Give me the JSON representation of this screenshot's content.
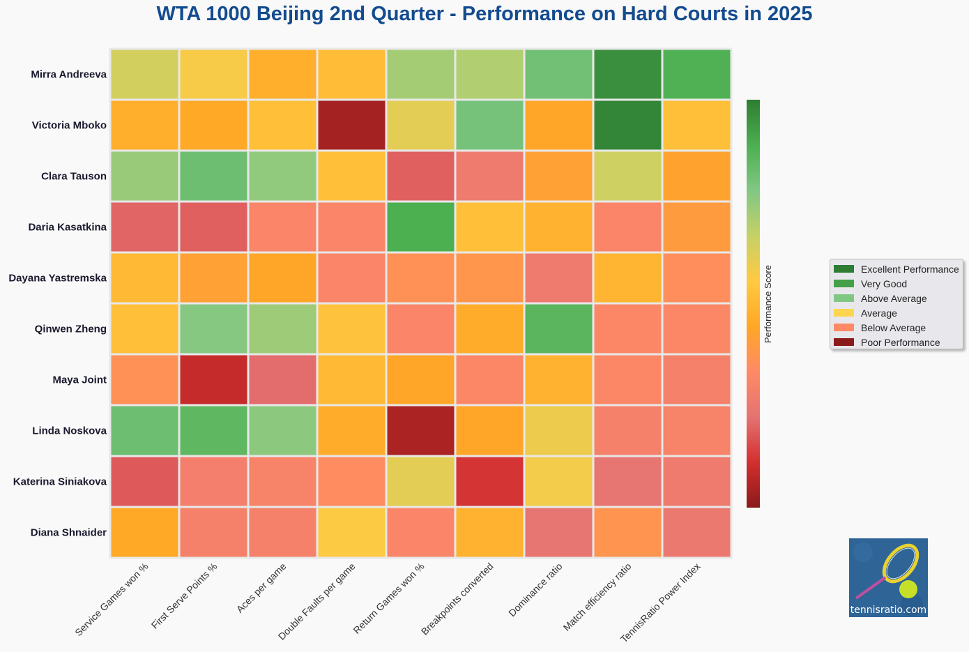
{
  "chart_data": {
    "type": "heatmap",
    "title": "WTA 1000 Beijing 2nd Quarter - Performance on Hard Courts in 2025",
    "rows": [
      "Mirra Andreeva",
      "Victoria Mboko",
      "Clara Tauson",
      "Daria Kasatkina",
      "Dayana Yastremska",
      "Qinwen Zheng",
      "Maya Joint",
      "Linda Noskova",
      "Katerina Siniakova",
      "Diana Shnaider"
    ],
    "columns": [
      "Service Games won %",
      "First Serve Points %",
      "Aces per game",
      "Double Faults per game",
      "Return Games won %",
      "Breakpoints converted",
      "Dominance ratio",
      "Match efficiency ratio",
      "TennisRatio Power Index"
    ],
    "values": [
      [
        0.64,
        0.57,
        0.47,
        0.51,
        0.72,
        0.7,
        0.81,
        0.96,
        0.88
      ],
      [
        0.47,
        0.45,
        0.52,
        0.04,
        0.61,
        0.8,
        0.44,
        0.98,
        0.52
      ],
      [
        0.74,
        0.82,
        0.75,
        0.52,
        0.19,
        0.26,
        0.42,
        0.65,
        0.43
      ],
      [
        0.2,
        0.19,
        0.31,
        0.31,
        0.89,
        0.52,
        0.48,
        0.31,
        0.4
      ],
      [
        0.5,
        0.42,
        0.44,
        0.31,
        0.36,
        0.38,
        0.26,
        0.49,
        0.35
      ],
      [
        0.52,
        0.77,
        0.73,
        0.53,
        0.31,
        0.46,
        0.86,
        0.32,
        0.32
      ],
      [
        0.36,
        0.09,
        0.21,
        0.5,
        0.44,
        0.32,
        0.48,
        0.32,
        0.29
      ],
      [
        0.82,
        0.85,
        0.76,
        0.46,
        0.05,
        0.44,
        0.59,
        0.29,
        0.3
      ],
      [
        0.18,
        0.28,
        0.3,
        0.34,
        0.61,
        0.12,
        0.58,
        0.23,
        0.26
      ],
      [
        0.45,
        0.29,
        0.29,
        0.56,
        0.31,
        0.48,
        0.23,
        0.37,
        0.25
      ]
    ],
    "colorbar_label": "Performance Score",
    "color_range": [
      0,
      1
    ],
    "colormap": [
      "#8b1a1a",
      "#d32f2f",
      "#e57373",
      "#ff8a65",
      "#ffa726",
      "#ffca42",
      "#c5d167",
      "#81c784",
      "#4caf50",
      "#2e7d32"
    ],
    "legend": {
      "position": "right",
      "items": [
        {
          "label": "Excellent Performance",
          "color": "#2e7d32"
        },
        {
          "label": "Very Good",
          "color": "#43a047"
        },
        {
          "label": "Above Average",
          "color": "#81c784"
        },
        {
          "label": "Average",
          "color": "#ffd54f"
        },
        {
          "label": "Below Average",
          "color": "#ff8a65"
        },
        {
          "label": "Poor Performance",
          "color": "#8b1a1a"
        }
      ]
    }
  },
  "logo": {
    "text": "tennisratio.com"
  }
}
